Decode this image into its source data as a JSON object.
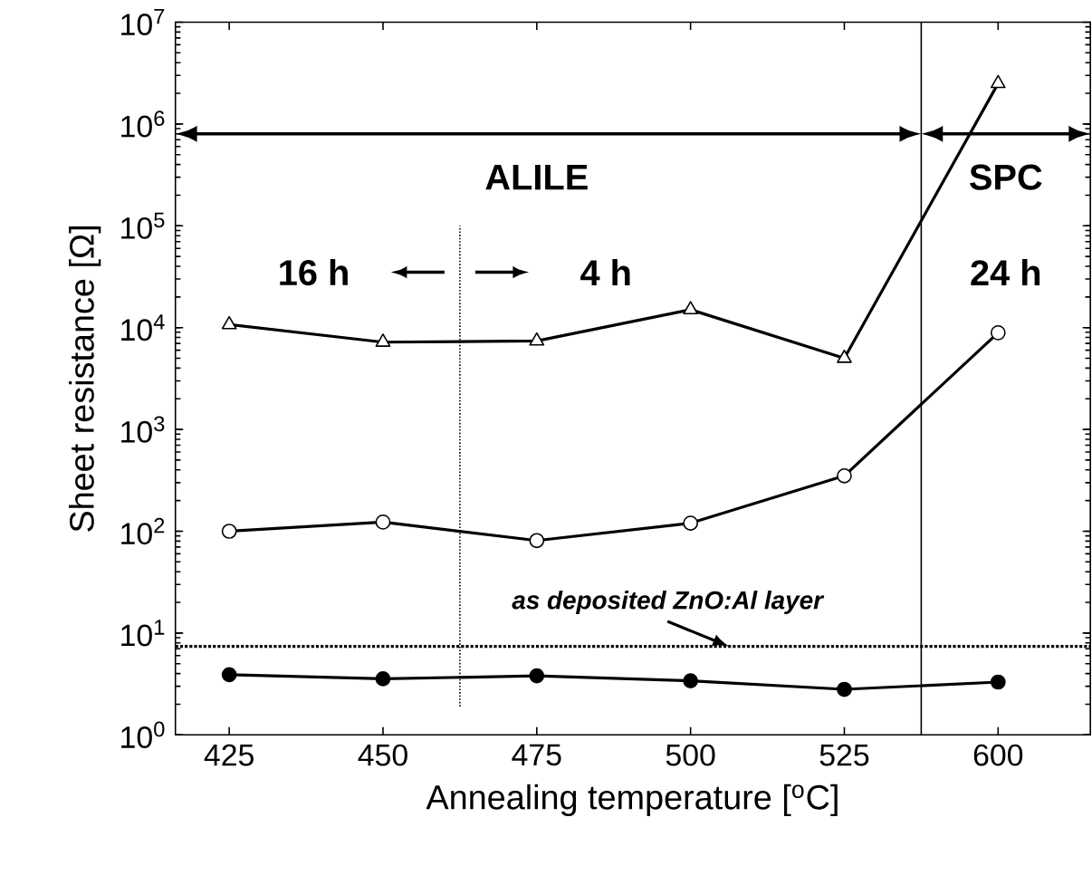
{
  "chart_data": {
    "type": "line",
    "xlabel": "Annealing temperature [$^{o}$C]",
    "ylabel": "Sheet resistance [Ω]",
    "categories": [
      "425",
      "450",
      "475",
      "500",
      "525",
      "600"
    ],
    "log": "y",
    "ylim": [
      1,
      10000000
    ],
    "yticks": [
      {
        "value": 1,
        "label": "10$^{0}$"
      },
      {
        "value": 10,
        "label": "10$^{1}$"
      },
      {
        "value": 100,
        "label": "10$^{2}$"
      },
      {
        "value": 1000,
        "label": "10$^{3}$"
      },
      {
        "value": 10000,
        "label": "10$^{4}$"
      },
      {
        "value": 100000,
        "label": "10$^{5}$"
      },
      {
        "value": 1000000,
        "label": "10$^{6}$"
      },
      {
        "value": 10000000,
        "label": "10$^{7}$"
      }
    ],
    "line_style": "solid",
    "series": [
      {
        "marker": "triangle",
        "color": "#ffffff",
        "values": [
          10700,
          7200,
          7400,
          15000,
          5000,
          2500000
        ]
      },
      {
        "marker": "circle",
        "color": "#ffffff",
        "values": [
          100,
          123,
          81,
          120,
          350,
          8900
        ]
      },
      {
        "marker": "circle",
        "color": "#000000",
        "values": [
          3.9,
          3.55,
          3.8,
          3.4,
          2.8,
          3.3
        ]
      }
    ],
    "ref_lines": [
      {
        "axis": "y",
        "value": 7.4,
        "label": "as deposited ZnO:Al layer",
        "line_style": "dotted"
      }
    ],
    "annotations": [
      "ALILE",
      "SPC",
      "16 h",
      "4 h",
      "24 h"
    ]
  }
}
